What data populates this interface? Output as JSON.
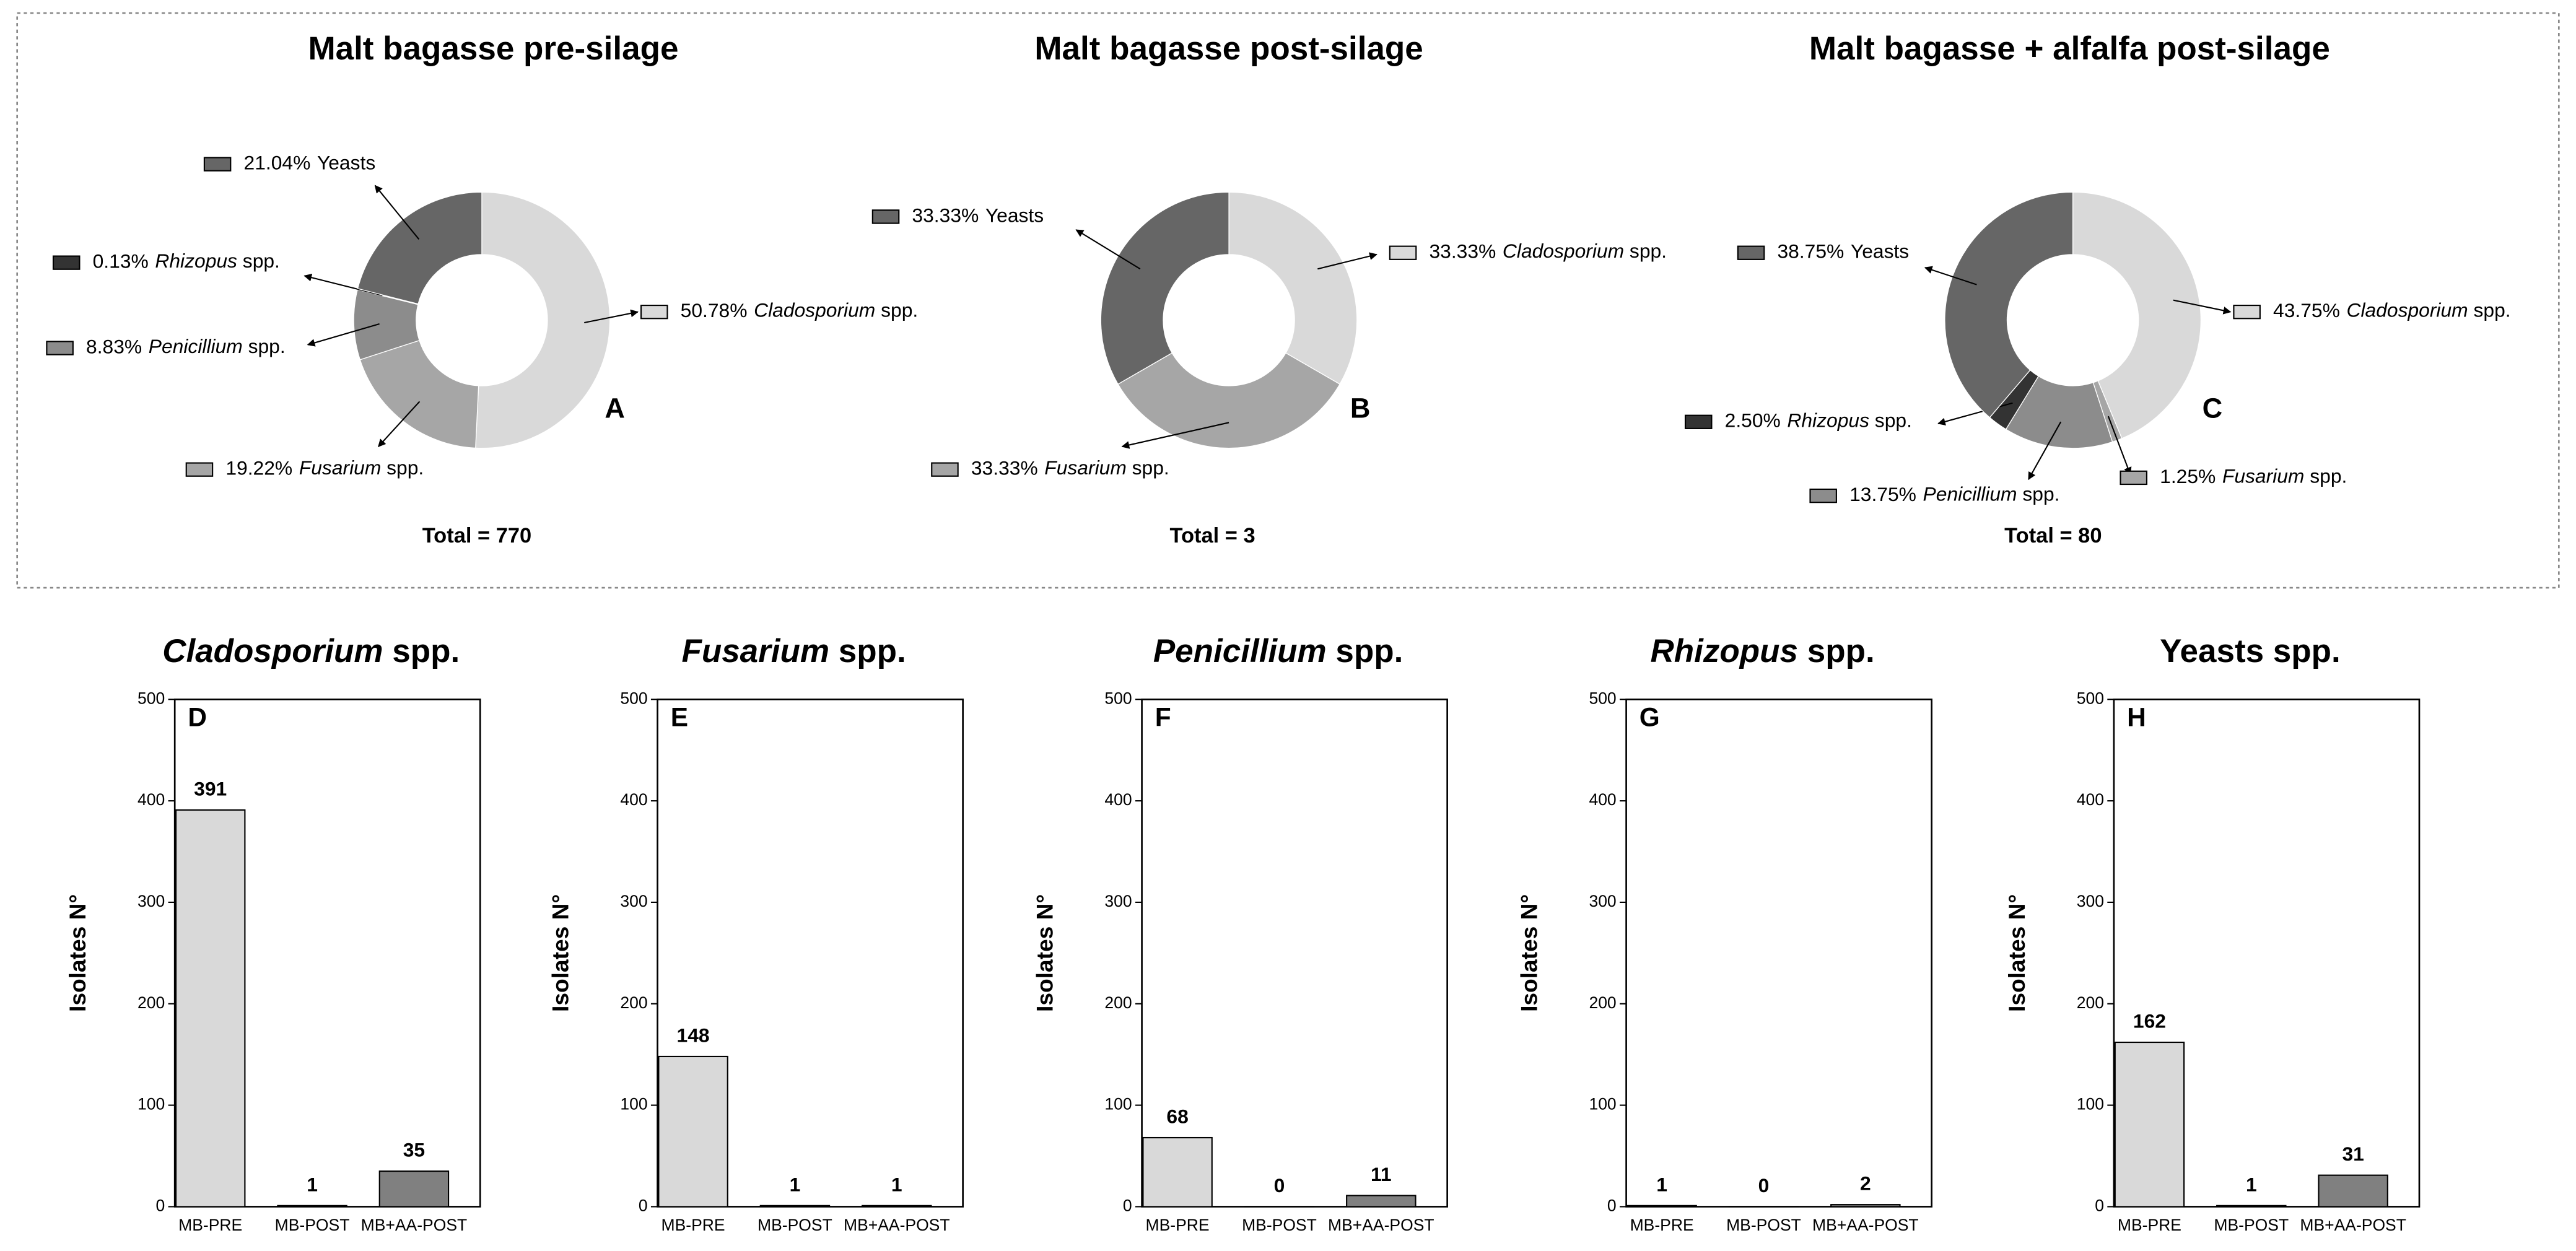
{
  "chart_data": [
    {
      "type": "donut",
      "title": "Malt bagasse pre-silage",
      "panel_label": "A",
      "annotation": "Total = 770",
      "categories": [
        "Cladosporium spp.",
        "Fusarium spp.",
        "Penicillium spp.",
        "Rhizopus spp.",
        "Yeasts"
      ],
      "italic": [
        true,
        true,
        true,
        true,
        false
      ],
      "values": [
        50.78,
        19.22,
        8.83,
        0.13,
        21.04
      ],
      "value_labels": [
        "50.78%",
        "19.22%",
        "8.83%",
        "0.13%",
        "21.04%"
      ],
      "colors": [
        "#d9d9d9",
        "#a6a6a6",
        "#8c8c8c",
        "#333333",
        "#666666"
      ]
    },
    {
      "type": "donut",
      "title": "Malt bagasse post-silage",
      "panel_label": "B",
      "annotation": "Total = 3",
      "categories": [
        "Cladosporium spp.",
        "Fusarium spp.",
        "Yeasts"
      ],
      "italic": [
        true,
        true,
        false
      ],
      "values": [
        33.33,
        33.33,
        33.33
      ],
      "value_labels": [
        "33.33%",
        "33.33%",
        "33.33%"
      ],
      "colors": [
        "#d9d9d9",
        "#a6a6a6",
        "#666666"
      ]
    },
    {
      "type": "donut",
      "title": "Malt bagasse + alfalfa post-silage",
      "panel_label": "C",
      "annotation": "Total = 80",
      "categories": [
        "Cladosporium spp.",
        "Fusarium spp.",
        "Penicillium spp.",
        "Rhizopus spp.",
        "Yeasts"
      ],
      "italic": [
        true,
        true,
        true,
        true,
        false
      ],
      "values": [
        43.75,
        1.25,
        13.75,
        2.5,
        38.75
      ],
      "value_labels": [
        "43.75%",
        "1.25%",
        "13.75%",
        "2.50%",
        "38.75%"
      ],
      "colors": [
        "#d9d9d9",
        "#a6a6a6",
        "#8c8c8c",
        "#333333",
        "#666666"
      ]
    },
    {
      "type": "bar",
      "title": "Cladosporium spp.",
      "title_italic": true,
      "panel_label": "D",
      "ylabel": "Isolates N°",
      "categories": [
        "MB-PRE",
        "MB-POST",
        "MB+AA-POST"
      ],
      "values": [
        391,
        1,
        35
      ],
      "colors": [
        "#d9d9d9",
        "#bfbfbf",
        "#808080"
      ],
      "ylim": [
        0,
        500
      ],
      "yticks": [
        0,
        100,
        200,
        300,
        400,
        500
      ]
    },
    {
      "type": "bar",
      "title": "Fusarium spp.",
      "title_italic": true,
      "panel_label": "E",
      "ylabel": "Isolates N°",
      "categories": [
        "MB-PRE",
        "MB-POST",
        "MB+AA-POST"
      ],
      "values": [
        148,
        1,
        1
      ],
      "colors": [
        "#d9d9d9",
        "#bfbfbf",
        "#808080"
      ],
      "ylim": [
        0,
        500
      ],
      "yticks": [
        0,
        100,
        200,
        300,
        400,
        500
      ]
    },
    {
      "type": "bar",
      "title": "Penicillium spp.",
      "title_italic": true,
      "panel_label": "F",
      "ylabel": "Isolates N°",
      "categories": [
        "MB-PRE",
        "MB-POST",
        "MB+AA-POST"
      ],
      "values": [
        68,
        0,
        11
      ],
      "colors": [
        "#d9d9d9",
        "#bfbfbf",
        "#808080"
      ],
      "ylim": [
        0,
        500
      ],
      "yticks": [
        0,
        100,
        200,
        300,
        400,
        500
      ]
    },
    {
      "type": "bar",
      "title": "Rhizopus spp.",
      "title_italic": true,
      "panel_label": "G",
      "ylabel": "Isolates N°",
      "categories": [
        "MB-PRE",
        "MB-POST",
        "MB+AA-POST"
      ],
      "values": [
        1,
        0,
        2
      ],
      "colors": [
        "#d9d9d9",
        "#bfbfbf",
        "#808080"
      ],
      "ylim": [
        0,
        500
      ],
      "yticks": [
        0,
        100,
        200,
        300,
        400,
        500
      ]
    },
    {
      "type": "bar",
      "title": "Yeasts spp.",
      "title_italic": false,
      "panel_label": "H",
      "ylabel": "Isolates N°",
      "categories": [
        "MB-PRE",
        "MB-POST",
        "MB+AA-POST"
      ],
      "values": [
        162,
        1,
        31
      ],
      "colors": [
        "#d9d9d9",
        "#bfbfbf",
        "#808080"
      ],
      "ylim": [
        0,
        500
      ],
      "yticks": [
        0,
        100,
        200,
        300,
        400,
        500
      ]
    }
  ]
}
